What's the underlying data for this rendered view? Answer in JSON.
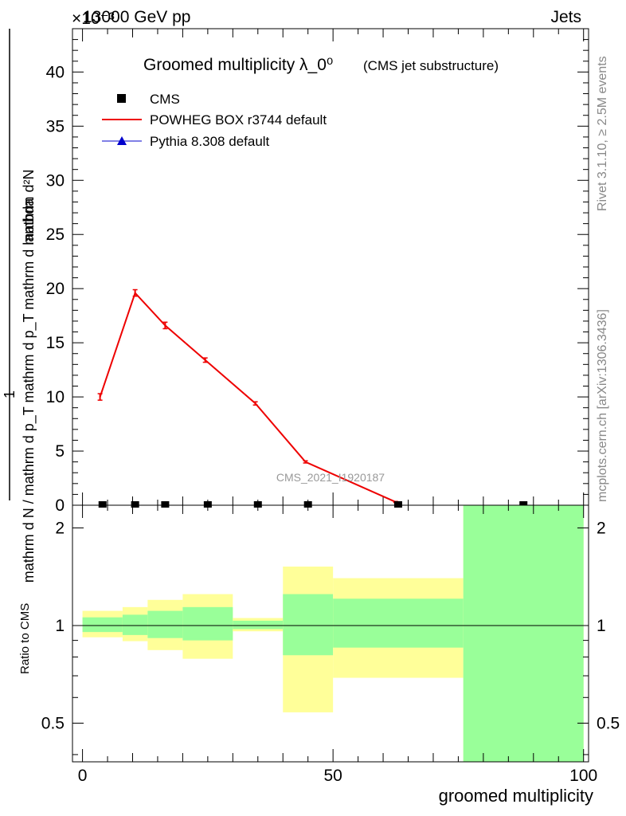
{
  "header": {
    "left": "13000 GeV pp",
    "right": "Jets",
    "exponent": "×10⁻³"
  },
  "side": {
    "rivet": "Rivet 3.1.10, ≥ 2.5M events",
    "mcplots": "mcplots.cern.ch [arXiv:1306.3436]"
  },
  "watermark": "CMS_2021_I1920187",
  "chart_data": {
    "type": "line",
    "title": "Groomed multiplicity λ_0⁰",
    "subtitle": "(CMS jet substructure)",
    "ylabel_numerator": "mathrm d²N",
    "ylabel_denominator": "mathrm d N / mathrm d p_T mathrm d p_T mathrm d lambda",
    "ylabel_prefix": "1",
    "xlabel": "groomed multiplicity",
    "ratio_ylabel": "Ratio to CMS",
    "xlim": [
      -2,
      101
    ],
    "ylim": [
      0,
      44
    ],
    "ratio_ylim": [
      0.38,
      2.35
    ],
    "x_ticks": [
      0,
      50,
      100
    ],
    "y_ticks": [
      0,
      5,
      10,
      15,
      20,
      25,
      30,
      35,
      40
    ],
    "ratio_ticks": [
      0.5,
      1,
      2
    ],
    "bin_edges": [
      0,
      8,
      13,
      20,
      30,
      40,
      50,
      76,
      100
    ],
    "legend": [
      {
        "name": "CMS",
        "marker": "square",
        "color": "#000000"
      },
      {
        "name": "POWHEG BOX r3744 default",
        "marker": "line",
        "color": "#ee0000"
      },
      {
        "name": "Pythia 8.308 default",
        "marker": "triangle",
        "color": "#0000cc"
      }
    ],
    "series": [
      {
        "name": "CMS",
        "x": [
          4,
          10.5,
          16.5,
          25,
          35,
          45,
          63,
          88
        ],
        "y": [
          0,
          0,
          0,
          0,
          0,
          0,
          0,
          0
        ]
      },
      {
        "name": "POWHEG BOX r3744 default",
        "x": [
          3.5,
          10.5,
          16.5,
          24.5,
          34.5,
          44.5,
          62.5
        ],
        "y": [
          10.0,
          19.6,
          16.6,
          13.4,
          9.4,
          4.0,
          0.3
        ],
        "err": [
          0.3,
          0.3,
          0.3,
          0.2,
          0.15,
          0.1,
          0.05
        ]
      }
    ],
    "ratio_bands": [
      {
        "x0": 0,
        "x1": 8,
        "y0": 0.92,
        "y1": 1.11,
        "g0": 0.955,
        "g1": 1.06
      },
      {
        "x0": 8,
        "x1": 13,
        "y0": 0.895,
        "y1": 1.14,
        "g0": 0.935,
        "g1": 1.08
      },
      {
        "x0": 13,
        "x1": 20,
        "y0": 0.84,
        "y1": 1.2,
        "g0": 0.915,
        "g1": 1.11
      },
      {
        "x0": 20,
        "x1": 30,
        "y0": 0.79,
        "y1": 1.25,
        "g0": 0.9,
        "g1": 1.14
      },
      {
        "x0": 30,
        "x1": 40,
        "y0": 0.96,
        "y1": 1.055,
        "g0": 0.975,
        "g1": 1.035
      },
      {
        "x0": 40,
        "x1": 50,
        "y0": 0.54,
        "y1": 1.52,
        "g0": 0.81,
        "g1": 1.25
      },
      {
        "x0": 50,
        "x1": 76,
        "y0": 0.69,
        "y1": 1.4,
        "g0": 0.855,
        "g1": 1.21
      },
      {
        "x0": 76,
        "x1": 100,
        "y0": 0.3,
        "y1": 3.0,
        "g0": 0.3,
        "g1": 3.0
      }
    ],
    "band_colors": {
      "yellow": "#ffff99",
      "green": "#99ff99"
    }
  }
}
